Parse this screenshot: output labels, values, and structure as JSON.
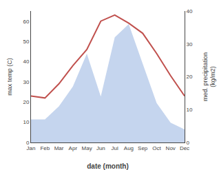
{
  "chart_data": {
    "type": "line",
    "categories": [
      "Jan",
      "Feb",
      "Mar",
      "Apr",
      "May",
      "Jun",
      "Jul",
      "Aug",
      "Sep",
      "Oct",
      "Nov",
      "Dec"
    ],
    "xlabel": "date (month)",
    "ylabel": "max temp (C)",
    "y2label": "med. precipitation\n(kg/m2)",
    "series": [
      {
        "type": "area",
        "axis": "y2",
        "color": "#c5d5ee",
        "values": [
          7,
          7,
          11,
          17,
          27,
          14,
          32,
          36,
          24,
          12,
          6,
          4
        ]
      },
      {
        "type": "line",
        "color": "#c0504d",
        "values": [
          23,
          22,
          29,
          38,
          46,
          60,
          63,
          59,
          54,
          44,
          33,
          23
        ]
      }
    ],
    "ylim": [
      0,
      65
    ],
    "yticks": [
      0,
      10,
      20,
      30,
      40,
      50,
      60
    ],
    "y2lim": [
      0,
      40
    ],
    "y2ticks": [
      0,
      10,
      20,
      30,
      40
    ],
    "grid": false
  }
}
